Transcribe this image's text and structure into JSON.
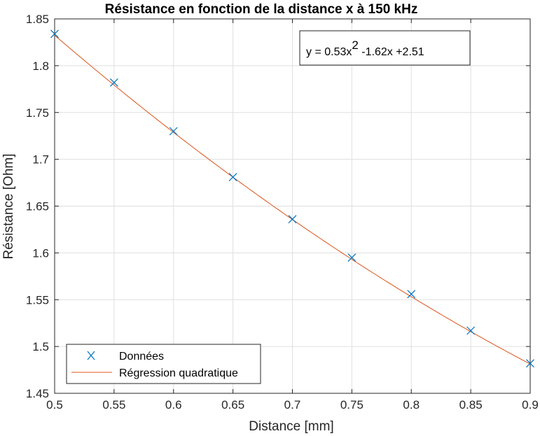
{
  "chart_data": {
    "type": "scatter",
    "title": "Résistance en fonction de la distance x à 150 kHz",
    "xlabel": "Distance [mm]",
    "ylabel": "Résistance [Ohm]",
    "xlim": [
      0.5,
      0.9
    ],
    "ylim": [
      1.45,
      1.85
    ],
    "x_ticks": [
      0.5,
      0.55,
      0.6,
      0.65,
      0.7,
      0.75,
      0.8,
      0.85,
      0.9
    ],
    "x_tick_labels": [
      "0.5",
      "0.55",
      "0.6",
      "0.65",
      "0.7",
      "0.75",
      "0.8",
      "0.85",
      "0.9"
    ],
    "y_ticks": [
      1.45,
      1.5,
      1.55,
      1.6,
      1.65,
      1.7,
      1.75,
      1.8,
      1.85
    ],
    "y_tick_labels": [
      "1.45",
      "1.5",
      "1.55",
      "1.6",
      "1.65",
      "1.7",
      "1.75",
      "1.8",
      "1.85"
    ],
    "grid": true,
    "legend_position": "bottom-left",
    "series": [
      {
        "name": "Données",
        "kind": "markers",
        "marker": "x",
        "color": "#0072BD",
        "x": [
          0.5,
          0.55,
          0.6,
          0.65,
          0.7,
          0.75,
          0.8,
          0.85,
          0.9
        ],
        "y": [
          1.834,
          1.782,
          1.73,
          1.681,
          1.636,
          1.595,
          1.556,
          1.517,
          1.482
        ]
      },
      {
        "name": "Régression quadratique",
        "kind": "line",
        "color": "#D95319",
        "coefficients": [
          0.53,
          -1.62,
          2.51
        ]
      }
    ],
    "annotation": {
      "prefix": "y = 0.53x",
      "superscript": "2",
      "suffix": " -1.62x +2.51"
    }
  }
}
